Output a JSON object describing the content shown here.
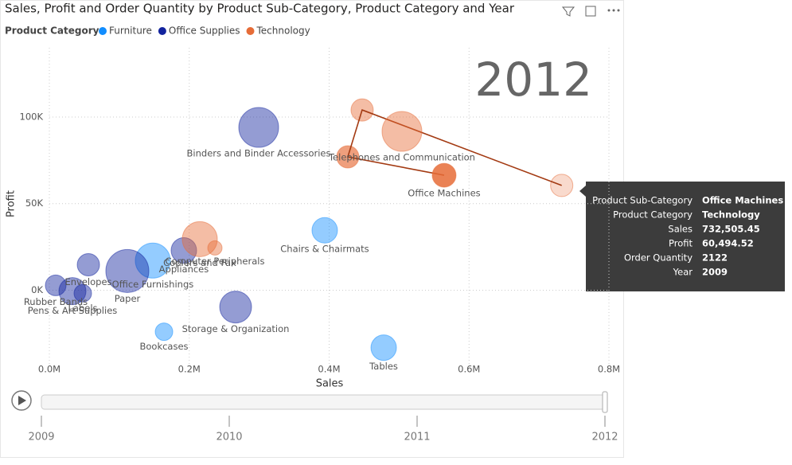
{
  "chart_data": {
    "type": "scatter",
    "title": "Sales, Profit and Order Quantity by Product Sub-Category, Product Category and Year",
    "legend_title": "Product Category",
    "x_label": "Sales",
    "y_label": "Profit",
    "current_year": "2012",
    "xlim": [
      0,
      800000
    ],
    "ylim": [
      -43000,
      140000
    ],
    "xticks": [
      {
        "value": 0,
        "label": "0.0M"
      },
      {
        "value": 200000,
        "label": "0.2M"
      },
      {
        "value": 400000,
        "label": "0.4M"
      },
      {
        "value": 600000,
        "label": "0.6M"
      },
      {
        "value": 800000,
        "label": "0.8M"
      }
    ],
    "yticks": [
      {
        "value": 0,
        "label": "0K"
      },
      {
        "value": 50000,
        "label": "50K"
      },
      {
        "value": 100000,
        "label": "100K"
      }
    ],
    "grid": true,
    "series": [
      {
        "name": "Furniture",
        "color": "#118DFF",
        "labels": [
          "Chairs & Chairmats",
          "Tables",
          "Bookcases",
          "Office Furnishings"
        ],
        "x": [
          393700,
          478000,
          163900,
          147900
        ],
        "values": [
          34600,
          -33200,
          -24000,
          17100
        ],
        "sizes": [
          2772,
          2772,
          1310,
          5240
        ]
      },
      {
        "name": "Office Supplies",
        "color": "#12239E",
        "labels": [
          "Binders and Binder Accessories",
          "Storage & Organization",
          "Appliances",
          "Paper",
          "Envelopes",
          "Rubber Bands",
          "Labels",
          "Pens & Art Supplies"
        ],
        "x": [
          299300,
          266300,
          192300,
          111500,
          55800,
          9100,
          47800,
          33000
        ],
        "values": [
          94000,
          -9700,
          23000,
          11100,
          14700,
          2800,
          -1800,
          -500
        ],
        "sizes": [
          6767,
          4331,
          2772,
          7892,
          2122,
          1830,
          1310,
          3129
        ]
      },
      {
        "name": "Technology",
        "color": "#E66C37",
        "labels": [
          "Telephones and Communication",
          "Office Machines",
          "Copiers and Fax",
          "Computer Peripherals"
        ],
        "x": [
          504100,
          564400,
          215100,
          236700
        ],
        "values": [
          91700,
          66400,
          29500,
          24400
        ],
        "sizes": [
          6767,
          2436,
          5240,
          877
        ]
      }
    ],
    "trail": {
      "x": [
        732505.45,
        447200,
        426700
      ],
      "values": [
        60494.52,
        104100,
        77000
      ],
      "sizes": [
        2122,
        2122,
        2122
      ]
    },
    "play_axis": [
      "2009",
      "2010",
      "2011",
      "2012"
    ],
    "tooltip": [
      {
        "label": "Product Sub-Category",
        "value": "Office Machines"
      },
      {
        "label": "Product Category",
        "value": "Technology"
      },
      {
        "label": "Sales",
        "value": "732,505.45"
      },
      {
        "label": "Profit",
        "value": "60,494.52"
      },
      {
        "label": "Order Quantity",
        "value": "2122"
      },
      {
        "label": "Year",
        "value": "2009"
      }
    ]
  }
}
